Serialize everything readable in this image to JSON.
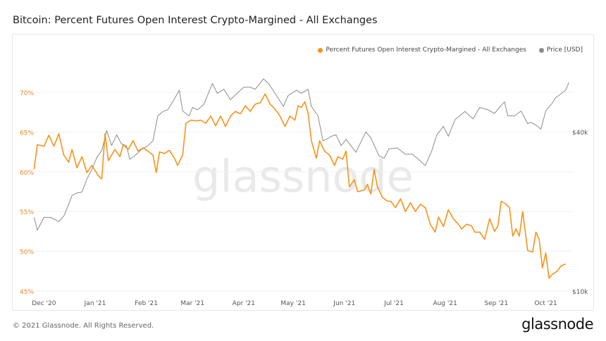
{
  "header": {
    "title": "Bitcoin: Percent Futures Open Interest Crypto-Margined - All Exchanges"
  },
  "footer": {
    "copyright": "© 2021 Glassnode. All Rights Reserved.",
    "logo": "glassnode"
  },
  "colors": {
    "percent": "#f7931a",
    "price": "#8c8c8c",
    "left_axis": "#e8892b",
    "grid": "#f0f0f0",
    "watermark": "#e9e9e9"
  },
  "chart_data": {
    "type": "line",
    "title": "Bitcoin: Percent Futures Open Interest Crypto-Margined - All Exchanges",
    "watermark": "glassnode",
    "legend_position": "top-right",
    "grid": true,
    "x_range": [
      "2020-11-24",
      "2021-10-17"
    ],
    "x_ticks": [
      {
        "date": "2020-12-01",
        "label": "Dec '20"
      },
      {
        "date": "2021-01-01",
        "label": "Jan '21"
      },
      {
        "date": "2021-02-01",
        "label": "Feb '21"
      },
      {
        "date": "2021-03-01",
        "label": "Mar '21"
      },
      {
        "date": "2021-04-01",
        "label": "Apr '21"
      },
      {
        "date": "2021-05-01",
        "label": "May '21"
      },
      {
        "date": "2021-06-01",
        "label": "Jun '21"
      },
      {
        "date": "2021-07-01",
        "label": "Jul '21"
      },
      {
        "date": "2021-08-01",
        "label": "Aug '21"
      },
      {
        "date": "2021-09-01",
        "label": "Sep '21"
      },
      {
        "date": "2021-10-01",
        "label": "Oct '21"
      }
    ],
    "y_left": {
      "range": [
        45,
        70
      ],
      "ticks": [
        {
          "v": 70,
          "label": "70%"
        },
        {
          "v": 65,
          "label": "65%"
        },
        {
          "v": 60,
          "label": "60%"
        },
        {
          "v": 55,
          "label": "55%"
        },
        {
          "v": 50,
          "label": "50%"
        },
        {
          "v": 45,
          "label": "45%"
        }
      ]
    },
    "y_right": {
      "scale": "log",
      "range": [
        10000,
        56500
      ],
      "ticks": [
        {
          "v": 40000,
          "label": "$40k"
        },
        {
          "v": 10000,
          "label": "$10k"
        }
      ]
    },
    "series": [
      {
        "name": "Percent Futures Open Interest Crypto-Margined - All Exchanges",
        "axis": "left",
        "points": [
          [
            "2020-11-25",
            60.3
          ],
          [
            "2020-11-27",
            63.4
          ],
          [
            "2020-12-01",
            63.2
          ],
          [
            "2020-12-04",
            64.6
          ],
          [
            "2020-12-07",
            63.2
          ],
          [
            "2020-12-10",
            64.8
          ],
          [
            "2020-12-13",
            62.1
          ],
          [
            "2020-12-16",
            61.2
          ],
          [
            "2020-12-18",
            62.8
          ],
          [
            "2020-12-21",
            60.5
          ],
          [
            "2020-12-24",
            61.9
          ],
          [
            "2020-12-27",
            59.9
          ],
          [
            "2020-12-30",
            60.8
          ],
          [
            "2021-01-03",
            59.5
          ],
          [
            "2021-01-05",
            59.1
          ],
          [
            "2021-01-07",
            64.8
          ],
          [
            "2021-01-09",
            61.4
          ],
          [
            "2021-01-13",
            62.8
          ],
          [
            "2021-01-16",
            61.9
          ],
          [
            "2021-01-18",
            63.4
          ],
          [
            "2021-01-21",
            62.8
          ],
          [
            "2021-01-24",
            63.9
          ],
          [
            "2021-01-27",
            62.6
          ],
          [
            "2021-01-30",
            63.0
          ],
          [
            "2021-02-02",
            62.6
          ],
          [
            "2021-02-05",
            62.1
          ],
          [
            "2021-02-07",
            59.9
          ],
          [
            "2021-02-09",
            62.5
          ],
          [
            "2021-02-12",
            62.3
          ],
          [
            "2021-02-15",
            62.7
          ],
          [
            "2021-02-18",
            61.7
          ],
          [
            "2021-02-20",
            60.8
          ],
          [
            "2021-02-23",
            62.1
          ],
          [
            "2021-02-25",
            66.1
          ],
          [
            "2021-02-28",
            66.5
          ],
          [
            "2021-03-03",
            66.4
          ],
          [
            "2021-03-06",
            66.5
          ],
          [
            "2021-03-09",
            66.1
          ],
          [
            "2021-03-12",
            67.0
          ],
          [
            "2021-03-15",
            65.8
          ],
          [
            "2021-03-18",
            67.0
          ],
          [
            "2021-03-21",
            65.7
          ],
          [
            "2021-03-24",
            67.0
          ],
          [
            "2021-03-27",
            67.6
          ],
          [
            "2021-03-30",
            67.3
          ],
          [
            "2021-04-02",
            68.3
          ],
          [
            "2021-04-05",
            67.6
          ],
          [
            "2021-04-08",
            68.5
          ],
          [
            "2021-04-11",
            68.7
          ],
          [
            "2021-04-14",
            69.8
          ],
          [
            "2021-04-17",
            68.5
          ],
          [
            "2021-04-20",
            67.9
          ],
          [
            "2021-04-23",
            67.0
          ],
          [
            "2021-04-26",
            65.7
          ],
          [
            "2021-04-29",
            67.0
          ],
          [
            "2021-05-02",
            66.5
          ],
          [
            "2021-05-04",
            68.3
          ],
          [
            "2021-05-06",
            68.1
          ],
          [
            "2021-05-08",
            68.8
          ],
          [
            "2021-05-10",
            67.4
          ],
          [
            "2021-05-12",
            63.9
          ],
          [
            "2021-05-15",
            61.7
          ],
          [
            "2021-05-17",
            63.9
          ],
          [
            "2021-05-20",
            62.6
          ],
          [
            "2021-05-23",
            62.1
          ],
          [
            "2021-05-26",
            60.8
          ],
          [
            "2021-05-28",
            61.9
          ],
          [
            "2021-05-31",
            61.6
          ],
          [
            "2021-06-02",
            62.6
          ],
          [
            "2021-06-04",
            58.1
          ],
          [
            "2021-06-07",
            59.0
          ],
          [
            "2021-06-09",
            57.5
          ],
          [
            "2021-06-13",
            57.7
          ],
          [
            "2021-06-15",
            58.4
          ],
          [
            "2021-06-17",
            57.2
          ],
          [
            "2021-06-19",
            60.3
          ],
          [
            "2021-06-21",
            58.1
          ],
          [
            "2021-06-24",
            56.8
          ],
          [
            "2021-06-27",
            56.3
          ],
          [
            "2021-06-29",
            56.3
          ],
          [
            "2021-07-02",
            55.5
          ],
          [
            "2021-07-05",
            56.6
          ],
          [
            "2021-07-08",
            55.0
          ],
          [
            "2021-07-11",
            56.1
          ],
          [
            "2021-07-14",
            55.0
          ],
          [
            "2021-07-17",
            55.9
          ],
          [
            "2021-07-20",
            55.5
          ],
          [
            "2021-07-23",
            53.4
          ],
          [
            "2021-07-26",
            52.4
          ],
          [
            "2021-07-28",
            54.3
          ],
          [
            "2021-07-31",
            53.1
          ],
          [
            "2021-08-03",
            55.2
          ],
          [
            "2021-08-06",
            54.1
          ],
          [
            "2021-08-09",
            53.4
          ],
          [
            "2021-08-11",
            52.8
          ],
          [
            "2021-08-14",
            53.4
          ],
          [
            "2021-08-17",
            53.2
          ],
          [
            "2021-08-19",
            52.4
          ],
          [
            "2021-08-22",
            52.4
          ],
          [
            "2021-08-25",
            51.5
          ],
          [
            "2021-08-28",
            54.1
          ],
          [
            "2021-08-31",
            52.5
          ],
          [
            "2021-09-02",
            53.2
          ],
          [
            "2021-09-04",
            56.3
          ],
          [
            "2021-09-07",
            55.9
          ],
          [
            "2021-09-09",
            55.5
          ],
          [
            "2021-09-11",
            51.9
          ],
          [
            "2021-09-13",
            52.8
          ],
          [
            "2021-09-15",
            51.9
          ],
          [
            "2021-09-17",
            55.0
          ],
          [
            "2021-09-20",
            50.1
          ],
          [
            "2021-09-23",
            49.9
          ],
          [
            "2021-09-25",
            52.4
          ],
          [
            "2021-09-27",
            51.5
          ],
          [
            "2021-09-29",
            47.9
          ],
          [
            "2021-10-01",
            49.8
          ],
          [
            "2021-10-03",
            46.6
          ],
          [
            "2021-10-05",
            47.1
          ],
          [
            "2021-10-08",
            47.5
          ],
          [
            "2021-10-10",
            48.1
          ],
          [
            "2021-10-13",
            48.4
          ]
        ]
      },
      {
        "name": "Price [USD]",
        "axis": "right",
        "points": [
          [
            "2020-11-25",
            19000
          ],
          [
            "2020-11-27",
            17000
          ],
          [
            "2020-12-01",
            19000
          ],
          [
            "2020-12-05",
            19000
          ],
          [
            "2020-12-10",
            18300
          ],
          [
            "2020-12-13",
            19200
          ],
          [
            "2020-12-16",
            21300
          ],
          [
            "2020-12-18",
            23000
          ],
          [
            "2020-12-21",
            23500
          ],
          [
            "2020-12-24",
            23700
          ],
          [
            "2020-12-27",
            26500
          ],
          [
            "2020-12-30",
            28800
          ],
          [
            "2021-01-02",
            32000
          ],
          [
            "2021-01-05",
            34000
          ],
          [
            "2021-01-08",
            40500
          ],
          [
            "2021-01-11",
            35500
          ],
          [
            "2021-01-14",
            39000
          ],
          [
            "2021-01-17",
            36000
          ],
          [
            "2021-01-20",
            35500
          ],
          [
            "2021-01-22",
            31500
          ],
          [
            "2021-01-25",
            32500
          ],
          [
            "2021-01-29",
            34300
          ],
          [
            "2021-02-02",
            35500
          ],
          [
            "2021-02-05",
            37000
          ],
          [
            "2021-02-08",
            46000
          ],
          [
            "2021-02-11",
            47800
          ],
          [
            "2021-02-14",
            48500
          ],
          [
            "2021-02-17",
            52000
          ],
          [
            "2021-02-21",
            57500
          ],
          [
            "2021-02-23",
            48000
          ],
          [
            "2021-02-27",
            46000
          ],
          [
            "2021-03-01",
            49500
          ],
          [
            "2021-03-04",
            48500
          ],
          [
            "2021-03-08",
            51000
          ],
          [
            "2021-03-13",
            61000
          ],
          [
            "2021-03-16",
            56000
          ],
          [
            "2021-03-20",
            58000
          ],
          [
            "2021-03-24",
            53000
          ],
          [
            "2021-03-28",
            56000
          ],
          [
            "2021-04-01",
            59000
          ],
          [
            "2021-04-05",
            59000
          ],
          [
            "2021-04-08",
            58000
          ],
          [
            "2021-04-13",
            63500
          ],
          [
            "2021-04-16",
            61000
          ],
          [
            "2021-04-20",
            56000
          ],
          [
            "2021-04-25",
            50000
          ],
          [
            "2021-04-28",
            55000
          ],
          [
            "2021-05-03",
            57500
          ],
          [
            "2021-05-06",
            56000
          ],
          [
            "2021-05-10",
            58000
          ],
          [
            "2021-05-12",
            50000
          ],
          [
            "2021-05-16",
            46000
          ],
          [
            "2021-05-19",
            37000
          ],
          [
            "2021-05-21",
            37500
          ],
          [
            "2021-05-24",
            38500
          ],
          [
            "2021-05-27",
            39000
          ],
          [
            "2021-05-30",
            35500
          ],
          [
            "2021-06-02",
            37500
          ],
          [
            "2021-06-08",
            33500
          ],
          [
            "2021-06-14",
            40000
          ],
          [
            "2021-06-17",
            38000
          ],
          [
            "2021-06-22",
            32500
          ],
          [
            "2021-06-25",
            31800
          ],
          [
            "2021-06-28",
            34500
          ],
          [
            "2021-07-03",
            34800
          ],
          [
            "2021-07-08",
            32900
          ],
          [
            "2021-07-12",
            33000
          ],
          [
            "2021-07-16",
            31500
          ],
          [
            "2021-07-20",
            29800
          ],
          [
            "2021-07-24",
            34000
          ],
          [
            "2021-07-27",
            39000
          ],
          [
            "2021-07-31",
            42000
          ],
          [
            "2021-08-03",
            38500
          ],
          [
            "2021-08-07",
            44500
          ],
          [
            "2021-08-13",
            47800
          ],
          [
            "2021-08-18",
            44800
          ],
          [
            "2021-08-22",
            49500
          ],
          [
            "2021-08-27",
            48500
          ],
          [
            "2021-08-31",
            47000
          ],
          [
            "2021-09-04",
            50500
          ],
          [
            "2021-09-06",
            52000
          ],
          [
            "2021-09-08",
            46000
          ],
          [
            "2021-09-12",
            46000
          ],
          [
            "2021-09-16",
            48000
          ],
          [
            "2021-09-20",
            43000
          ],
          [
            "2021-09-22",
            43500
          ],
          [
            "2021-09-25",
            42500
          ],
          [
            "2021-09-28",
            41000
          ],
          [
            "2021-10-01",
            48000
          ],
          [
            "2021-10-05",
            51500
          ],
          [
            "2021-10-07",
            54000
          ],
          [
            "2021-10-09",
            55000
          ],
          [
            "2021-10-13",
            57500
          ],
          [
            "2021-10-15",
            61500
          ]
        ]
      }
    ]
  }
}
